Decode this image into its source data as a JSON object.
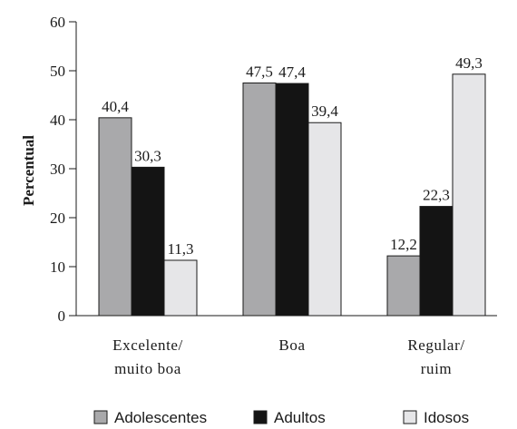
{
  "chart_data": {
    "type": "bar",
    "categories": [
      [
        "Excelente/",
        "muito boa"
      ],
      [
        "Boa"
      ],
      [
        "Regular/",
        "ruim"
      ]
    ],
    "series": [
      {
        "name": "Adolescentes",
        "color": "#a9a9ab",
        "values": [
          40.4,
          47.5,
          12.2
        ],
        "labels": [
          "40,4",
          "47,5",
          "12,2"
        ]
      },
      {
        "name": "Adultos",
        "color": "#141414",
        "values": [
          30.3,
          47.4,
          22.3
        ],
        "labels": [
          "30,3",
          "47,4",
          "22,3"
        ]
      },
      {
        "name": "Idosos",
        "color": "#e6e6e8",
        "values": [
          11.3,
          39.4,
          49.3
        ],
        "labels": [
          "11,3",
          "39,4",
          "49,3"
        ]
      }
    ],
    "ylabel": "Percentual",
    "ylim": [
      0,
      60
    ],
    "yticks": [
      0,
      10,
      20,
      30,
      40,
      50,
      60
    ],
    "grid": false,
    "legend_position": "bottom"
  }
}
